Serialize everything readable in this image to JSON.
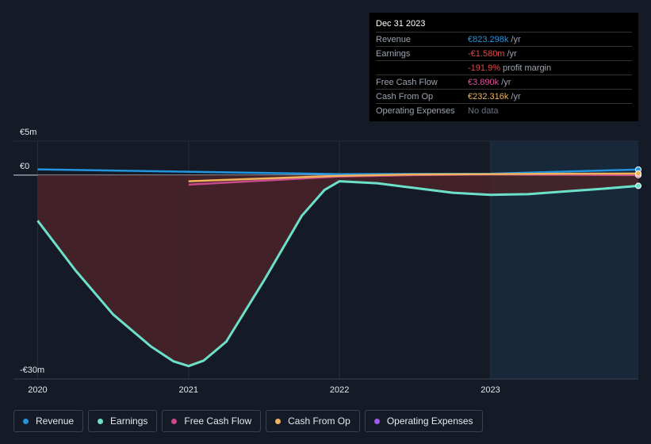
{
  "chart_data": {
    "type": "line",
    "xlim": [
      2019.84,
      2023.98
    ],
    "xticks": [
      2020,
      2021,
      2022,
      2023
    ],
    "ylim": [
      -30,
      5
    ],
    "yticks": [
      {
        "value": 5,
        "label": "€5m"
      },
      {
        "value": 0,
        "label": "€0"
      },
      {
        "value": -30,
        "label": "-€30m"
      }
    ],
    "grid": true,
    "forecast_shade_from": 2023,
    "series": [
      {
        "name": "Revenue",
        "color": "#2394df",
        "x": [
          2020,
          2021,
          2022,
          2023,
          2023.98
        ],
        "values": [
          0.85,
          0.5,
          0.15,
          0.2,
          0.82
        ]
      },
      {
        "name": "Earnings",
        "color": "#6ce0c8",
        "fill": "#4a2329",
        "x": [
          2020,
          2020.25,
          2020.5,
          2020.75,
          2020.9,
          2021,
          2021.1,
          2021.25,
          2021.5,
          2021.75,
          2021.9,
          2022,
          2022.25,
          2022.5,
          2022.75,
          2023,
          2023.25,
          2023.5,
          2023.75,
          2023.98
        ],
        "values": [
          -6.7,
          -14,
          -20.5,
          -25.2,
          -27.4,
          -28.1,
          -27.3,
          -24.5,
          -15.5,
          -6,
          -2.2,
          -0.9,
          -1.2,
          -1.9,
          -2.6,
          -2.9,
          -2.8,
          -2.4,
          -2,
          -1.58
        ]
      },
      {
        "name": "Free Cash Flow",
        "color": "#c94a8a",
        "x": [
          2021,
          2021.5,
          2022,
          2022.5,
          2023,
          2023.5,
          2023.98
        ],
        "values": [
          -1.4,
          -0.8,
          -0.2,
          0.0,
          0.1,
          0.05,
          0.00389
        ]
      },
      {
        "name": "Cash From Op",
        "color": "#f0b35c",
        "x": [
          2021,
          2021.5,
          2022,
          2022.5,
          2023,
          2023.5,
          2023.98
        ],
        "values": [
          -0.9,
          -0.5,
          -0.1,
          0.1,
          0.15,
          0.2,
          0.232316
        ]
      },
      {
        "name": "Operating Expenses",
        "color": "#9b5de5",
        "x": [],
        "values": []
      }
    ]
  },
  "tooltip": {
    "title": "Dec 31 2023",
    "rows": [
      {
        "label": "Revenue",
        "value": "€823.298k",
        "unit": "/yr",
        "color": "#2394df"
      },
      {
        "label": "Earnings",
        "value": "-€1.580m",
        "unit": "/yr",
        "color": "#e04848"
      },
      {
        "value": "-191.9%",
        "unit": "profit margin",
        "color": "#e04848"
      },
      {
        "label": "Free Cash Flow",
        "value": "€3.890k",
        "unit": "/yr",
        "color": "#d8549a"
      },
      {
        "label": "Cash From Op",
        "value": "€232.316k",
        "unit": "/yr",
        "color": "#f0b35c"
      },
      {
        "label": "Operating Expenses",
        "value": "No data",
        "color": "#6b7280"
      }
    ]
  }
}
